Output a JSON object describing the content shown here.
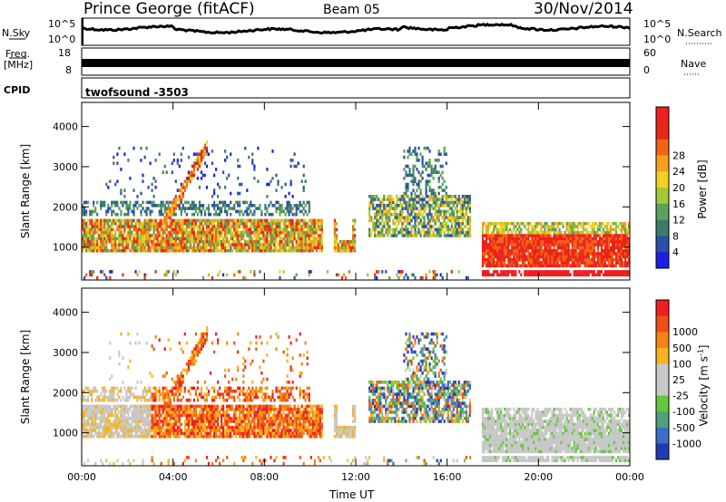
{
  "header": {
    "station": "Prince George (fitACF)",
    "beam": "Beam 05",
    "date": "30/Nov/2014"
  },
  "top_panels": {
    "nsky_label": "N.Sky",
    "nsky_hi": "10^5",
    "nsky_lo": "10^0",
    "nsearch_label": "N.Search",
    "nsearch_hi": "10^5",
    "nsearch_lo": "10^0",
    "freq_label": "Freq.",
    "freq_unit": "[MHz]",
    "freq_hi": "18",
    "freq_lo": "8",
    "nave_label": "Nave",
    "nave_hi": "60",
    "nave_lo": "0",
    "cpid_label": "CPID",
    "cpid_value": "twofsound -3503"
  },
  "chart_data": [
    {
      "type": "heatmap",
      "panel": "power",
      "ylabel": "Slant Range [km]",
      "y_ticks": [
        1000,
        2000,
        3000,
        4000
      ],
      "ylim": [
        180,
        4600
      ],
      "xlim": [
        0,
        24
      ],
      "colorbar": {
        "label": "Power [dB]",
        "ticks": [
          "4",
          "8",
          "12",
          "16",
          "20",
          "24",
          "28"
        ],
        "colors": [
          "#1e1ee6",
          "#2c4fa8",
          "#3d7a6a",
          "#5aa25a",
          "#a6c832",
          "#f0d21e",
          "#f5a01e",
          "#f06414",
          "#e62814",
          "#f01e1e"
        ]
      }
    },
    {
      "type": "heatmap",
      "panel": "velocity",
      "ylabel": "Slant Range [km]",
      "y_ticks": [
        1000,
        2000,
        3000,
        4000
      ],
      "ylim": [
        180,
        4600
      ],
      "xlim": [
        0,
        24
      ],
      "xlabel": "Time UT",
      "x_ticks": [
        "00:00",
        "04:00",
        "08:00",
        "12:00",
        "16:00",
        "20:00",
        "00:00"
      ],
      "colorbar": {
        "label": "Velocity [m s",
        "label_sup": "-1",
        "label_end": "]",
        "ticks": [
          "1000",
          "500",
          "100",
          "25",
          "-25",
          "-100",
          "-500",
          "-1000"
        ],
        "colors": [
          "#1e3cb4",
          "#3c6ec8",
          "#50a07a",
          "#64c83c",
          "#c8c8c8",
          "#c8c8c8",
          "#f5b41e",
          "#f58214",
          "#f05014",
          "#f01e1e"
        ]
      }
    }
  ]
}
